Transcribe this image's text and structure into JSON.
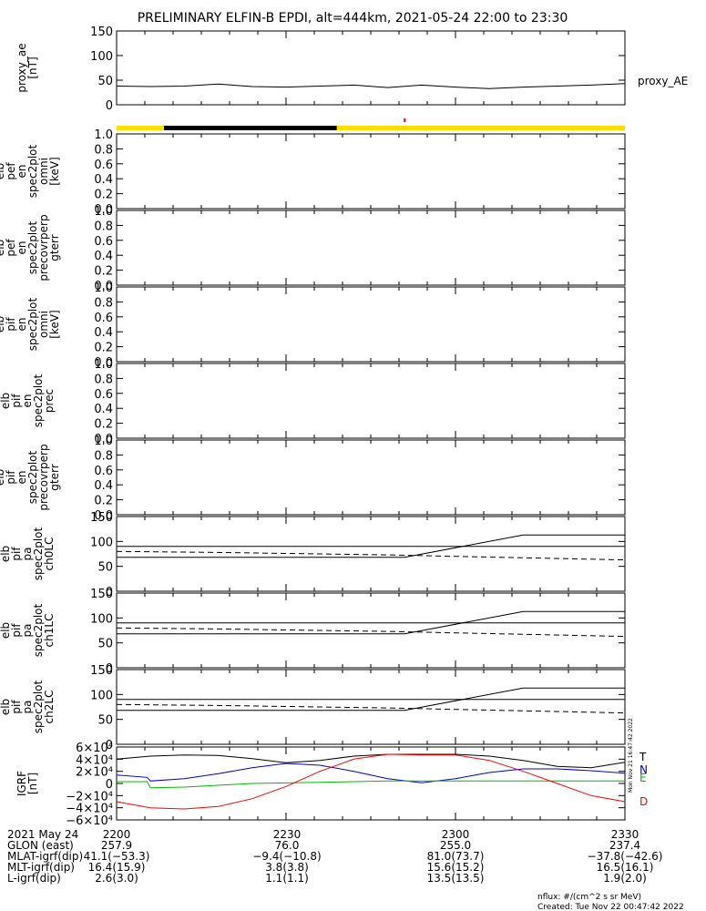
{
  "title": "PRELIMINARY ELFIN-B EPDI, alt=444km, 2021-05-24 22:00 to 23:30",
  "colors": {
    "axis": "#000000",
    "yellow": "#ffdd00",
    "red": "#ff0000",
    "blue": "#0000cc",
    "green": "#00bb00",
    "black": "#000000"
  },
  "chart_data": [
    {
      "id": "proxy_ae",
      "type": "line",
      "ylabel": [
        "proxy_ae",
        "[nT]"
      ],
      "yticks": [
        "150",
        "100",
        "50",
        "0"
      ],
      "ylim": [
        0,
        150
      ],
      "legend": "proxy_AE",
      "x": [
        22.0,
        22.1,
        22.2,
        22.3,
        22.4,
        22.5,
        22.6,
        22.7,
        22.8,
        22.9,
        23.0,
        23.1,
        23.2,
        23.3,
        23.4,
        23.5
      ],
      "values": [
        38,
        37,
        38,
        42,
        37,
        36,
        38,
        40,
        35,
        40,
        36,
        33,
        36,
        38,
        40,
        43
      ]
    },
    {
      "id": "status_bar",
      "type": "bar",
      "segments": [
        {
          "from": 22.0,
          "to": 22.14,
          "color": "yellow"
        },
        {
          "from": 22.14,
          "to": 22.65,
          "color": "black"
        },
        {
          "from": 22.65,
          "to": 23.5,
          "color": "yellow"
        }
      ],
      "marker": {
        "x": 22.85,
        "color": "red"
      }
    },
    {
      "id": "pef_omni",
      "type": "heatmap",
      "ylabel": [
        "elb",
        "pef",
        "en",
        "spec2plot",
        "omni",
        "[keV]"
      ],
      "yticks": [
        "1.0",
        "0.8",
        "0.6",
        "0.4",
        "0.2",
        "0.0"
      ]
    },
    {
      "id": "pef_precovrperp",
      "type": "heatmap",
      "ylabel": [
        "elb",
        "pef",
        "en",
        "spec2plot",
        "precovrperp",
        "gterr"
      ],
      "yticks": [
        "1.0",
        "0.8",
        "0.6",
        "0.4",
        "0.2",
        "0.0"
      ]
    },
    {
      "id": "pif_omni",
      "type": "heatmap",
      "ylabel": [
        "elb",
        "pif",
        "en",
        "spec2plot",
        "omni",
        "[keV]"
      ],
      "yticks": [
        "1.0",
        "0.8",
        "0.6",
        "0.4",
        "0.2",
        "0.0"
      ]
    },
    {
      "id": "pif_prec",
      "type": "heatmap",
      "ylabel": [
        "elb",
        "pif",
        "en",
        "spec2plot",
        "prec"
      ],
      "yticks": [
        "1.0",
        "0.8",
        "0.6",
        "0.4",
        "0.2",
        "0.0"
      ]
    },
    {
      "id": "pif_precovrperp",
      "type": "heatmap",
      "ylabel": [
        "elb",
        "pif",
        "en",
        "spec2plot",
        "precovrperp",
        "gterr"
      ],
      "yticks": [
        "1.0",
        "0.8",
        "0.6",
        "0.4",
        "0.2",
        "0.0"
      ]
    },
    {
      "id": "pa_ch0",
      "type": "line",
      "ylabel": [
        "elb",
        "pif",
        "pa",
        "spec2plot",
        "ch0LC"
      ],
      "yticks": [
        "150",
        "100",
        "50",
        "0"
      ],
      "ylim": [
        0,
        150
      ],
      "series": [
        {
          "style": "solid",
          "x": [
            22.0,
            22.8,
            22.85,
            23.2,
            23.5
          ],
          "values": [
            68,
            68,
            68,
            113,
            113
          ]
        },
        {
          "style": "solid",
          "x": [
            22.0,
            23.5
          ],
          "values": [
            90,
            90
          ]
        },
        {
          "style": "dashed",
          "x": [
            22.0,
            22.3,
            22.8,
            23.0,
            23.5
          ],
          "values": [
            80,
            78,
            73,
            70,
            63
          ]
        }
      ]
    },
    {
      "id": "pa_ch1",
      "type": "line",
      "ylabel": [
        "elb",
        "pif",
        "pa",
        "spec2plot",
        "ch1LC"
      ],
      "yticks": [
        "150",
        "100",
        "50",
        "0"
      ],
      "ylim": [
        0,
        150
      ],
      "series": [
        {
          "style": "solid",
          "x": [
            22.0,
            22.8,
            22.85,
            23.2,
            23.5
          ],
          "values": [
            68,
            68,
            68,
            113,
            113
          ]
        },
        {
          "style": "solid",
          "x": [
            22.0,
            23.5
          ],
          "values": [
            90,
            90
          ]
        },
        {
          "style": "dashed",
          "x": [
            22.0,
            22.3,
            22.8,
            23.0,
            23.5
          ],
          "values": [
            80,
            78,
            73,
            70,
            63
          ]
        }
      ]
    },
    {
      "id": "pa_ch2",
      "type": "line",
      "ylabel": [
        "elb",
        "pif",
        "pa",
        "spec2plot",
        "ch2LC"
      ],
      "yticks": [
        "150",
        "100",
        "50",
        "0"
      ],
      "ylim": [
        0,
        150
      ],
      "series": [
        {
          "style": "solid",
          "x": [
            22.0,
            22.8,
            22.85,
            23.2,
            23.5
          ],
          "values": [
            68,
            68,
            68,
            113,
            113
          ]
        },
        {
          "style": "solid",
          "x": [
            22.0,
            23.5
          ],
          "values": [
            90,
            90
          ]
        },
        {
          "style": "dashed",
          "x": [
            22.0,
            22.3,
            22.8,
            23.0,
            23.5
          ],
          "values": [
            80,
            78,
            73,
            70,
            63
          ]
        }
      ]
    },
    {
      "id": "bgrf",
      "type": "line",
      "ylabel": [
        "IGRF",
        "[nT]"
      ],
      "yticks": [
        "6×10⁴",
        "4×10⁴",
        "2×10⁴",
        "0",
        "−2×10⁴",
        "−4×10⁴",
        "−6×10⁴"
      ],
      "ylim": [
        -60000,
        60000
      ],
      "legend": [
        "T",
        "N",
        "E",
        "D"
      ],
      "series": [
        {
          "name": "T",
          "color": "black",
          "x": [
            22.0,
            22.1,
            22.2,
            22.3,
            22.4,
            22.5,
            22.6,
            22.7,
            22.8,
            22.9,
            23.0,
            23.1,
            23.2,
            23.3,
            23.4,
            23.5
          ],
          "values": [
            40000,
            45000,
            47000,
            46000,
            41000,
            34000,
            38000,
            45000,
            48000,
            48000,
            48000,
            45000,
            38000,
            28000,
            26000,
            35000
          ]
        },
        {
          "name": "N",
          "color": "blue",
          "x": [
            22.0,
            22.09,
            22.1,
            22.2,
            22.3,
            22.4,
            22.5,
            22.6,
            22.7,
            22.8,
            22.9,
            23.0,
            23.1,
            23.2,
            23.3,
            23.4,
            23.5
          ],
          "values": [
            14000,
            10000,
            4000,
            8000,
            16000,
            26000,
            33000,
            30000,
            20000,
            8000,
            1000,
            8000,
            18000,
            24000,
            24000,
            21000,
            17000
          ]
        },
        {
          "name": "E",
          "color": "green",
          "x": [
            22.0,
            22.09,
            22.1,
            22.2,
            22.4,
            22.6,
            22.8,
            23.0,
            23.2,
            23.4,
            23.5
          ],
          "values": [
            3000,
            3000,
            -7000,
            -6000,
            0,
            2000,
            4000,
            4000,
            4000,
            4000,
            4000
          ]
        },
        {
          "name": "D",
          "color": "red",
          "x": [
            22.0,
            22.1,
            22.2,
            22.3,
            22.4,
            22.5,
            22.6,
            22.7,
            22.8,
            22.9,
            23.0,
            23.1,
            23.2,
            23.3,
            23.4,
            23.5
          ],
          "values": [
            -30000,
            -40000,
            -42000,
            -38000,
            -25000,
            -5000,
            20000,
            40000,
            48000,
            47000,
            47000,
            38000,
            20000,
            0,
            -20000,
            -30000
          ]
        }
      ]
    }
  ],
  "xaxis": {
    "range": [
      22.0,
      23.5
    ],
    "ticks": [
      {
        "x": 22.0,
        "label": "2200"
      },
      {
        "x": 22.5,
        "label": "2230"
      },
      {
        "x": 23.0,
        "label": "2300"
      },
      {
        "x": 23.5,
        "label": "2330"
      }
    ]
  },
  "ephemeris": [
    {
      "label": "2021 May 24",
      "values": [
        "2200",
        "2230",
        "2300",
        "2330"
      ]
    },
    {
      "label": "GLON (east)",
      "values": [
        "257.9",
        "76.0",
        "255.0",
        "237.4"
      ]
    },
    {
      "label": "MLAT-igrf(dip)",
      "values": [
        "41.1(−53.3)",
        "−9.4(−10.8)",
        "81.0(73.7)",
        "−37.8(−42.6)"
      ]
    },
    {
      "label": "MLT-igrf(dip)",
      "values": [
        "16.4(15.9)",
        "3.8(3.8)",
        "15.6(15.2)",
        "16.5(16.1)"
      ]
    },
    {
      "label": "L-igrf(dip)",
      "values": [
        "2.6(3.0)",
        "1.1(1.1)",
        "13.5(13.5)",
        "1.9(2.0)"
      ]
    }
  ],
  "footer": {
    "nflux": "nflux: #/(cm^2 s sr MeV)",
    "created": "Created: Tue Nov 22 00:47:42 2022",
    "side_stamp": "Mon Nov 21 16:47:42 2022"
  }
}
